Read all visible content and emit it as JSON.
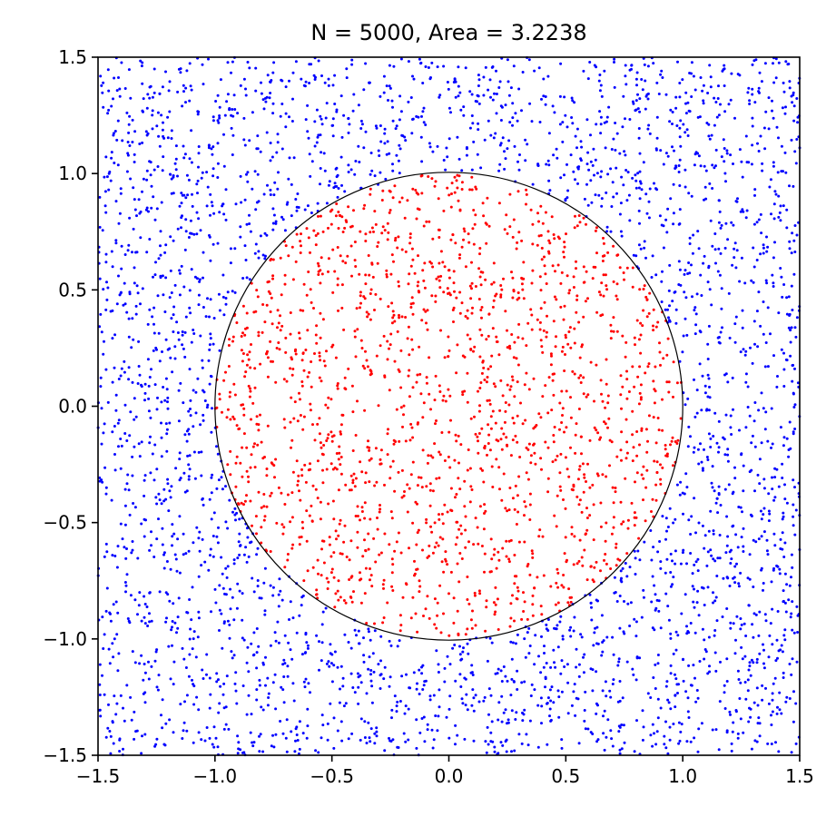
{
  "chart_data": {
    "type": "scatter",
    "title": "N = 5000, Area = 3.2238",
    "xlabel": "",
    "ylabel": "",
    "xlim": [
      -1.5,
      1.5
    ],
    "ylim": [
      -1.5,
      1.5
    ],
    "aspect": "equal",
    "grid": false,
    "legend": "none",
    "n_points": 5000,
    "sampling": "uniform random over the square [-1.5, 1.5] x [-1.5, 1.5]",
    "xticks": [
      -1.5,
      -1.0,
      -0.5,
      0.0,
      0.5,
      1.0,
      1.5
    ],
    "yticks": [
      -1.5,
      -1.0,
      -0.5,
      0.0,
      0.5,
      1.0,
      1.5
    ],
    "xtick_labels": [
      "−1.5",
      "−1.0",
      "−0.5",
      "0.0",
      "0.5",
      "1.0",
      "1.5"
    ],
    "ytick_labels": [
      "−1.5",
      "−1.0",
      "−0.5",
      "0.0",
      "0.5",
      "1.0",
      "1.5"
    ],
    "circle": {
      "center": [
        0,
        0
      ],
      "radius": 1.0,
      "color": "#000000"
    },
    "colors": {
      "inside": "#ff0000",
      "outside": "#0000ff"
    },
    "series": [
      {
        "category": "inside",
        "condition": "x^2 + y^2 <= 1",
        "color": "#ff0000"
      },
      {
        "category": "outside",
        "condition": "x^2 + y^2 > 1",
        "color": "#0000ff"
      }
    ]
  }
}
